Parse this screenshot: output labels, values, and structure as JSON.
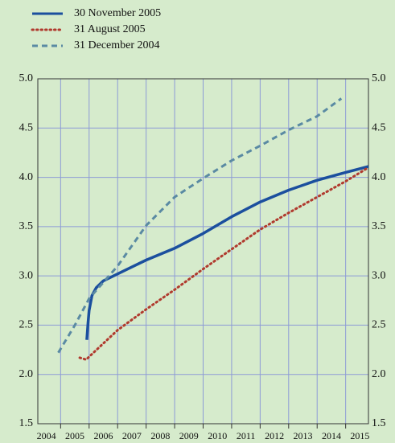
{
  "chart_data": {
    "type": "line",
    "xlim": [
      2004.2,
      2015.8
    ],
    "xticks": [
      2004,
      2005,
      2006,
      2007,
      2008,
      2009,
      2010,
      2011,
      2012,
      2013,
      2014,
      2015
    ],
    "ylim": [
      1.5,
      5.0
    ],
    "yticks": [
      {
        "value": 1.5,
        "label": "1.5"
      },
      {
        "value": 2.0,
        "label": "2.0"
      },
      {
        "value": 2.5,
        "label": "2.5"
      },
      {
        "value": 3.0,
        "label": "3.0"
      },
      {
        "value": 3.5,
        "label": "3.5"
      },
      {
        "value": 4.0,
        "label": "4.0"
      },
      {
        "value": 4.5,
        "label": "4.5"
      },
      {
        "value": 5.0,
        "label": "5.0"
      }
    ],
    "grid": true,
    "legend": "top-left",
    "series": [
      {
        "name": "30 November 2005",
        "color": "#1b4f9e",
        "style": "solid",
        "x": [
          2005.92,
          2005.96,
          2006.0,
          2006.1,
          2006.25,
          2006.5,
          2007,
          2007.5,
          2008,
          2009,
          2010,
          2011,
          2012,
          2013,
          2014,
          2015,
          2015.8
        ],
        "values": [
          2.35,
          2.52,
          2.65,
          2.8,
          2.88,
          2.95,
          3.02,
          3.09,
          3.16,
          3.28,
          3.43,
          3.6,
          3.75,
          3.87,
          3.97,
          4.05,
          4.11
        ]
      },
      {
        "name": "31 August 2005",
        "color": "#b03a2e",
        "style": "dotted",
        "x": [
          2005.67,
          2005.9,
          2006.0,
          2007,
          2008,
          2009,
          2010,
          2011,
          2012,
          2013,
          2014,
          2015,
          2015.8
        ],
        "values": [
          2.17,
          2.15,
          2.18,
          2.45,
          2.66,
          2.86,
          3.07,
          3.27,
          3.47,
          3.64,
          3.8,
          3.96,
          4.1
        ]
      },
      {
        "name": "31 December 2004",
        "color": "#5a8aa3",
        "style": "dashed",
        "x": [
          2004.92,
          2005.5,
          2006.0,
          2007,
          2008,
          2009,
          2010,
          2011,
          2012,
          2013,
          2014,
          2014.85
        ],
        "values": [
          2.22,
          2.5,
          2.77,
          3.1,
          3.51,
          3.8,
          3.99,
          4.17,
          4.32,
          4.48,
          4.62,
          4.8
        ]
      }
    ]
  }
}
